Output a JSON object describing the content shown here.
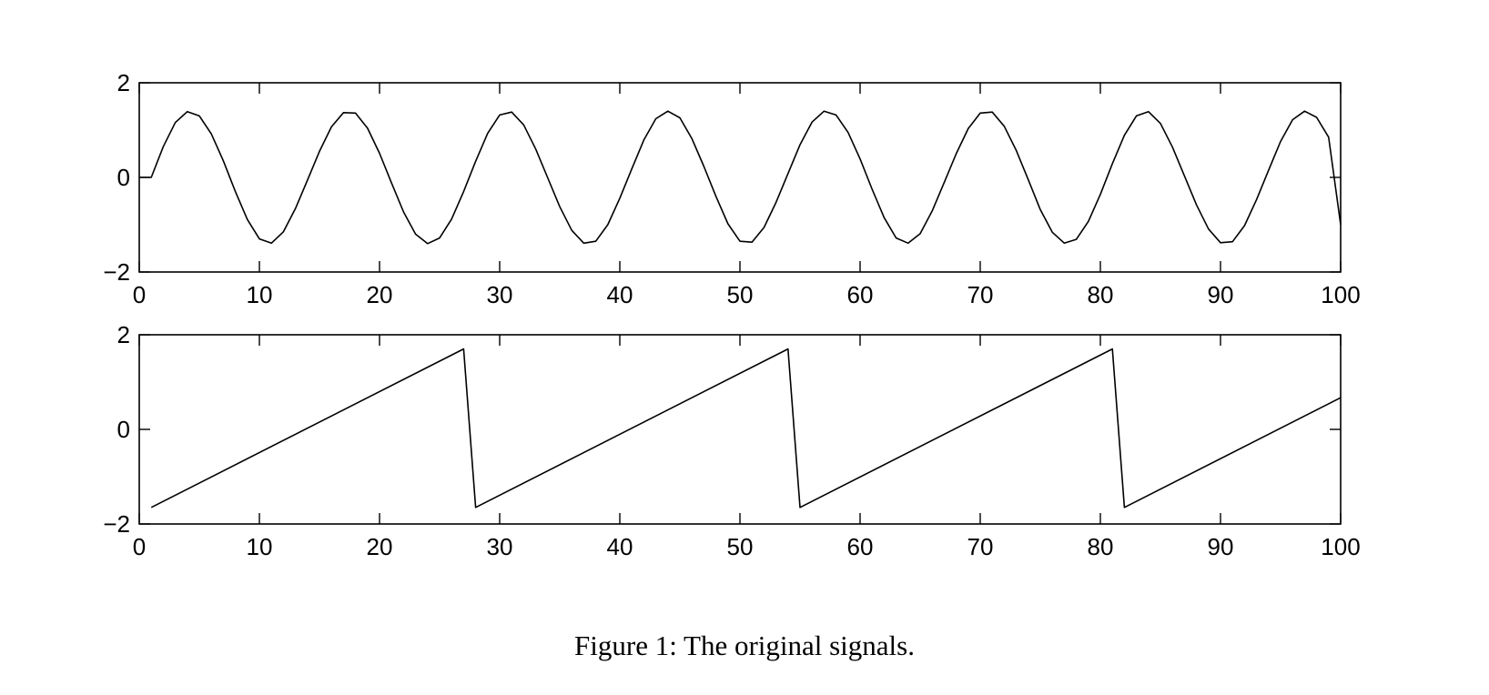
{
  "caption": "Figure 1: The original signals.",
  "chart_data": [
    {
      "type": "line",
      "title": "",
      "xlabel": "",
      "ylabel": "",
      "xlim": [
        0,
        100
      ],
      "ylim": [
        -2,
        2
      ],
      "x_ticks": [
        0,
        10,
        20,
        30,
        40,
        50,
        60,
        70,
        80,
        90,
        100
      ],
      "x_tick_labels": [
        "0",
        "10",
        "20",
        "30",
        "40",
        "50",
        "60",
        "70",
        "80",
        "90",
        "100"
      ],
      "y_ticks": [
        -2,
        0,
        2
      ],
      "y_tick_labels": [
        "−2",
        "0",
        "2"
      ],
      "grid": false,
      "line_color": "#000000",
      "series": [
        {
          "x": [
            0,
            1,
            2,
            3,
            4,
            5,
            6,
            7,
            8,
            9,
            10,
            11,
            12,
            13,
            14,
            15,
            16,
            17,
            18,
            19,
            20,
            21,
            22,
            23,
            24,
            25,
            26,
            27,
            28,
            29,
            30,
            31,
            32,
            33,
            34,
            35,
            36,
            37,
            38,
            39,
            40,
            41,
            42,
            43,
            44,
            45,
            46,
            47,
            48,
            49,
            50,
            51,
            52,
            53,
            54,
            55,
            56,
            57,
            58,
            59,
            60,
            61,
            62,
            63,
            64,
            65,
            66,
            67,
            68,
            69,
            70,
            71,
            72,
            73,
            74,
            75,
            76,
            77,
            78,
            79,
            80,
            81,
            82,
            83,
            84,
            85,
            86,
            87,
            88,
            89,
            90,
            91,
            92,
            93,
            94,
            95,
            96,
            97,
            98,
            99,
            100
          ],
          "y": [
            0.0,
            0.0,
            0.65,
            1.16,
            1.39,
            1.3,
            0.92,
            0.35,
            -0.3,
            -0.89,
            -1.3,
            -1.39,
            -1.15,
            -0.66,
            -0.06,
            0.55,
            1.07,
            1.37,
            1.36,
            1.04,
            0.51,
            -0.12,
            -0.73,
            -1.2,
            -1.4,
            -1.28,
            -0.88,
            -0.3,
            0.34,
            0.93,
            1.32,
            1.38,
            1.11,
            0.6,
            -0.01,
            -0.62,
            -1.12,
            -1.39,
            -1.35,
            -1.0,
            -0.44,
            0.18,
            0.79,
            1.24,
            1.4,
            1.26,
            0.82,
            0.23,
            -0.4,
            -0.98,
            -1.35,
            -1.37,
            -1.06,
            -0.53,
            0.08,
            0.69,
            1.17,
            1.4,
            1.32,
            0.95,
            0.39,
            -0.25,
            -0.85,
            -1.28,
            -1.39,
            -1.19,
            -0.71,
            -0.11,
            0.5,
            1.03,
            1.36,
            1.38,
            1.08,
            0.57,
            -0.05,
            -0.68,
            -1.16,
            -1.39,
            -1.31,
            -0.93,
            -0.36,
            0.29,
            0.89,
            1.3,
            1.39,
            1.14,
            0.64,
            0.03,
            -0.58,
            -1.09,
            -1.38,
            -1.36,
            -1.02,
            -0.47,
            0.15,
            0.76,
            1.22,
            1.4,
            1.27,
            0.85,
            -1.0
          ]
        }
      ]
    },
    {
      "type": "line",
      "title": "",
      "xlabel": "",
      "ylabel": "",
      "xlim": [
        0,
        100
      ],
      "ylim": [
        -2,
        2
      ],
      "x_ticks": [
        0,
        10,
        20,
        30,
        40,
        50,
        60,
        70,
        80,
        90,
        100
      ],
      "x_tick_labels": [
        "0",
        "10",
        "20",
        "30",
        "40",
        "50",
        "60",
        "70",
        "80",
        "90",
        "100"
      ],
      "y_ticks": [
        -2,
        0,
        2
      ],
      "y_tick_labels": [
        "−2",
        "0",
        "2"
      ],
      "grid": false,
      "line_color": "#000000",
      "series": [
        {
          "x": [
            1,
            27,
            28,
            54,
            55,
            81,
            82,
            100
          ],
          "y": [
            -1.65,
            1.7,
            -1.65,
            1.7,
            -1.65,
            1.7,
            -1.65,
            0.67
          ]
        }
      ]
    }
  ]
}
